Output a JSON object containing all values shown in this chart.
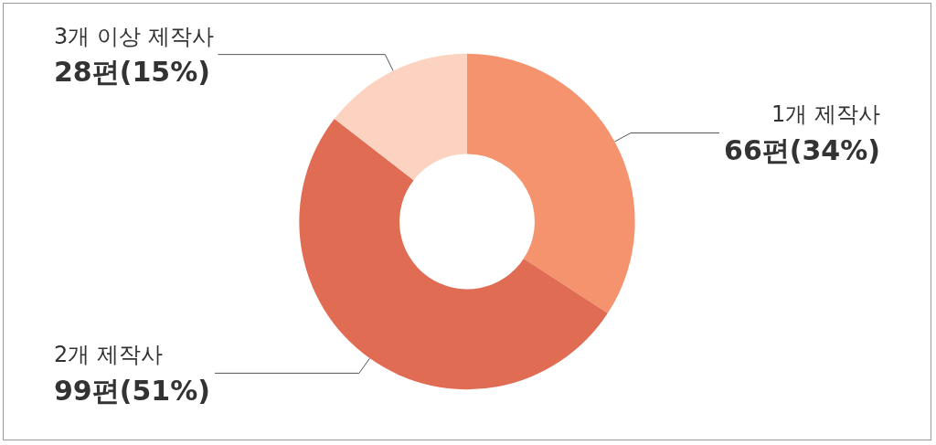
{
  "chart_data": {
    "type": "donut",
    "categories": [
      "1개 제작사",
      "2개 제작사",
      "3개 이상 제작사"
    ],
    "values": [
      66,
      99,
      28
    ],
    "colors": [
      "#f5936f",
      "#e06c53",
      "#fcd3c0"
    ],
    "value_labels": [
      "66편(34%)",
      "99편(51%)",
      "28편(15%)"
    ],
    "legend": false
  }
}
